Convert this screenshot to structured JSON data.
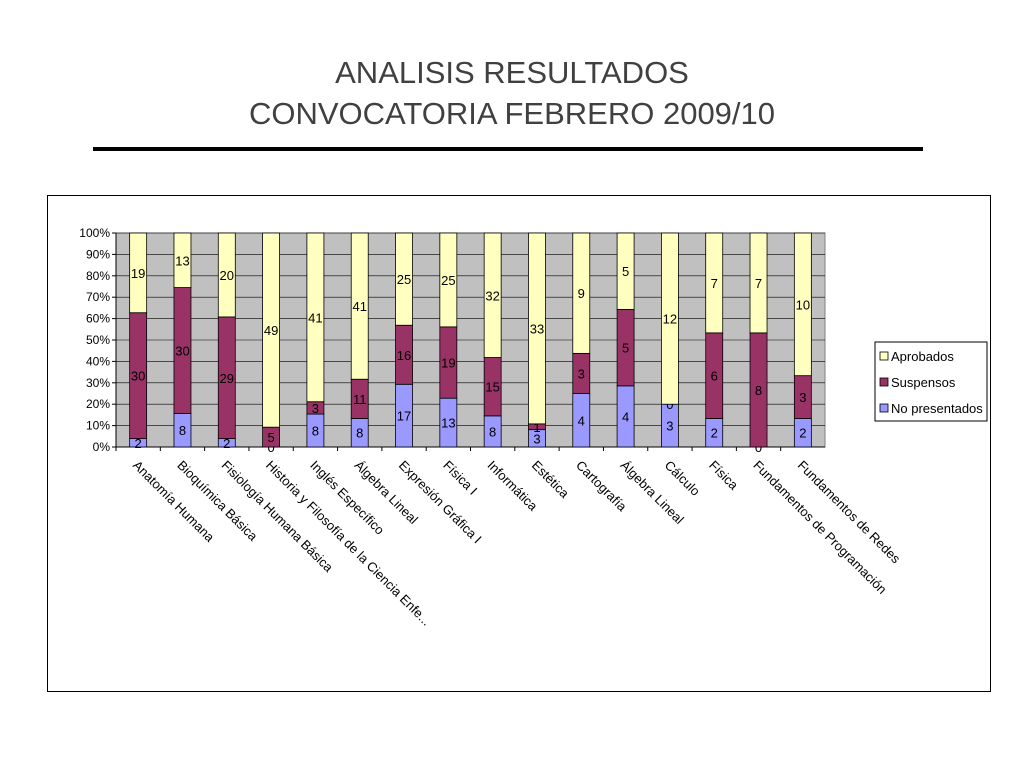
{
  "title": {
    "line1": "ANALISIS RESULTADOS",
    "line2": "CONVOCATORIA FEBRERO 2009/10"
  },
  "colors": {
    "aprobados": "#ffffc0",
    "suspensos": "#993366",
    "no_presentados": "#9999ff",
    "plot_background": "#c0c0c0"
  },
  "chart_data": {
    "type": "bar",
    "stacked": "percent",
    "title": "",
    "xlabel": "",
    "ylabel": "",
    "ylim": [
      0,
      100
    ],
    "y_ticks": [
      "0%",
      "10%",
      "20%",
      "30%",
      "40%",
      "50%",
      "60%",
      "70%",
      "80%",
      "90%",
      "100%"
    ],
    "grid": true,
    "legend_position": "right",
    "categories": [
      "Anatomía Humana",
      "Bioquímica Básica",
      "Fisiología Humana Básica",
      "Historia y Filosofía de la Ciencia Enfe...",
      "Inglés Específico",
      "Álgebra Lineal",
      "Expresión Gráfica I",
      "Física I",
      "Informática",
      "Estética",
      "Cartografía",
      "Álgebra Lineal",
      "Cálculo",
      "Física",
      "Fundamentos de Programación",
      "Fundamentos de Redes"
    ],
    "series": [
      {
        "name": "No presentados",
        "values": [
          2,
          8,
          2,
          0,
          8,
          8,
          17,
          13,
          8,
          3,
          4,
          4,
          3,
          2,
          0,
          2
        ]
      },
      {
        "name": "Suspensos",
        "values": [
          30,
          30,
          29,
          5,
          3,
          11,
          16,
          19,
          15,
          1,
          3,
          5,
          0,
          6,
          8,
          3
        ]
      },
      {
        "name": "Aprobados",
        "values": [
          19,
          13,
          20,
          49,
          41,
          41,
          25,
          25,
          32,
          33,
          9,
          5,
          12,
          7,
          7,
          10
        ]
      }
    ],
    "legend": [
      "Aprobados",
      "Suspensos",
      "No presentados"
    ]
  }
}
